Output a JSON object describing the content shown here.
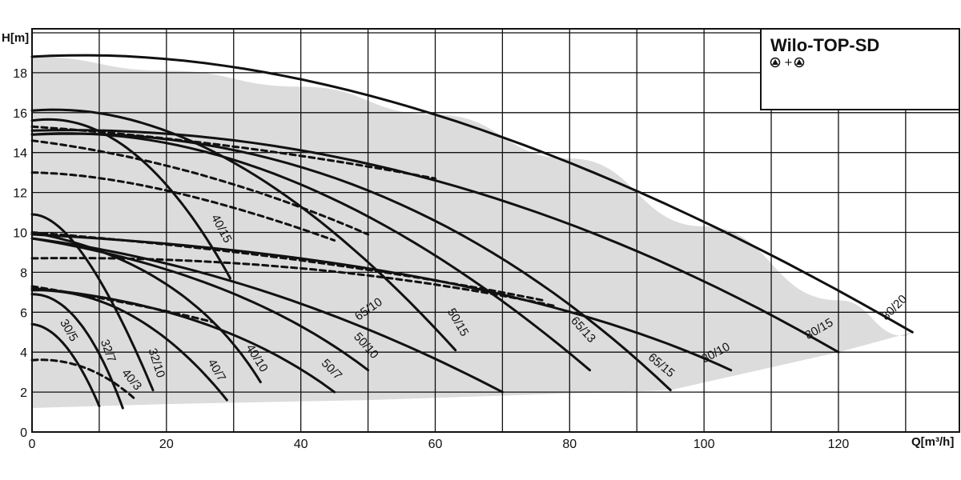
{
  "chart_data": {
    "type": "line",
    "title": "Wilo-TOP-SD",
    "subtitle_symbols": [
      "pump-icon",
      "+",
      "pump-icon"
    ],
    "subtitle_plus": "+",
    "xlabel": "Q[m³/h]",
    "ylabel": "H[m]",
    "xlim": [
      0,
      138
    ],
    "ylim": [
      0,
      20.2
    ],
    "x_ticks": [
      0,
      20,
      40,
      60,
      80,
      100,
      120
    ],
    "y_ticks": [
      0,
      2,
      4,
      6,
      8,
      10,
      12,
      14,
      16,
      18
    ],
    "grid": true,
    "colors": {
      "line": "#111111",
      "envelope": "#dcdcdc",
      "grid": "#111111"
    },
    "envelope": {
      "upper": [
        [
          0,
          18.8
        ],
        [
          20,
          18.1
        ],
        [
          40,
          17.3
        ],
        [
          60,
          15.9
        ],
        [
          80,
          13.7
        ],
        [
          100,
          10.3
        ],
        [
          120,
          6.6
        ],
        [
          130,
          4.8
        ]
      ],
      "lower": [
        [
          131,
          5.0
        ],
        [
          120,
          4.0
        ],
        [
          95,
          2.1
        ],
        [
          50,
          1.6
        ],
        [
          20,
          1.4
        ],
        [
          0,
          1.2
        ]
      ]
    },
    "series": [
      {
        "name": "30/5",
        "style": "solid",
        "points": [
          [
            0,
            5.4
          ],
          [
            5,
            4.3
          ],
          [
            10,
            1.3
          ]
        ]
      },
      {
        "name": "32/7",
        "style": "solid",
        "points": [
          [
            0,
            6.9
          ],
          [
            7,
            5.5
          ],
          [
            13.5,
            1.2
          ]
        ]
      },
      {
        "name": "40/3",
        "style": "dashed",
        "points": [
          [
            0,
            3.6
          ],
          [
            8,
            3.2
          ],
          [
            15.5,
            1.6
          ]
        ]
      },
      {
        "name": "32/10",
        "style": "solid",
        "points": [
          [
            0,
            10.9
          ],
          [
            8,
            8.7
          ],
          [
            18,
            2.1
          ]
        ]
      },
      {
        "name": "40/7",
        "style": "solid",
        "points": [
          [
            0,
            7.1
          ],
          [
            15,
            5.8
          ],
          [
            29,
            1.6
          ]
        ]
      },
      {
        "name": "40/10",
        "style": "solid",
        "points": [
          [
            0,
            10.0
          ],
          [
            20,
            7.4
          ],
          [
            34,
            2.5
          ]
        ]
      },
      {
        "name": "50/7",
        "style": "solid",
        "points": [
          [
            0,
            7.2
          ],
          [
            25,
            5.5
          ],
          [
            45,
            2.0
          ]
        ]
      },
      {
        "name": "50/10",
        "style": "solid",
        "points": [
          [
            0,
            9.7
          ],
          [
            28,
            7.2
          ],
          [
            50,
            3.1
          ]
        ]
      },
      {
        "name": "65/10",
        "style": "solid",
        "points": [
          [
            0,
            9.7
          ],
          [
            35,
            7.0
          ],
          [
            70,
            2.0
          ]
        ]
      },
      {
        "name": "40/15",
        "style": "solid",
        "points": [
          [
            0,
            15.6
          ],
          [
            15,
            14.0
          ],
          [
            29.5,
            7.7
          ]
        ]
      },
      {
        "name": "50/15",
        "style": "solid",
        "points": [
          [
            0,
            16.1
          ],
          [
            30,
            13.5
          ],
          [
            63,
            4.1
          ]
        ]
      },
      {
        "name": "65/13",
        "style": "solid",
        "points": [
          [
            0,
            14.9
          ],
          [
            40,
            12.4
          ],
          [
            83,
            3.1
          ]
        ]
      },
      {
        "name": "65/15",
        "style": "solid",
        "points": [
          [
            0,
            14.9
          ],
          [
            50,
            12.1
          ],
          [
            95,
            2.1
          ]
        ]
      },
      {
        "name": "80/10",
        "style": "solid",
        "points": [
          [
            0,
            9.9
          ],
          [
            60,
            7.6
          ],
          [
            104,
            3.1
          ]
        ]
      },
      {
        "name": "80/15",
        "style": "solid",
        "points": [
          [
            0,
            15.1
          ],
          [
            60,
            12.6
          ],
          [
            120,
            4.0
          ]
        ]
      },
      {
        "name": "80/20",
        "style": "solid",
        "points": [
          [
            0,
            18.8
          ],
          [
            60,
            15.9
          ],
          [
            131,
            5.0
          ]
        ]
      },
      {
        "name": "",
        "style": "dashed",
        "points": [
          [
            0,
            15.3
          ],
          [
            30,
            14.3
          ],
          [
            60,
            12.7
          ]
        ]
      },
      {
        "name": "",
        "style": "dashed",
        "points": [
          [
            0,
            14.6
          ],
          [
            25,
            12.9
          ],
          [
            50,
            9.9
          ]
        ]
      },
      {
        "name": "",
        "style": "dashed",
        "points": [
          [
            0,
            13.0
          ],
          [
            20,
            12.1
          ],
          [
            45,
            9.6
          ]
        ]
      },
      {
        "name": "",
        "style": "dashed",
        "points": [
          [
            0,
            10.0
          ],
          [
            40,
            8.6
          ],
          [
            76,
            6.6
          ]
        ]
      },
      {
        "name": "",
        "style": "dashed",
        "points": [
          [
            0,
            8.7
          ],
          [
            40,
            8.2
          ],
          [
            78,
            6.3
          ]
        ]
      },
      {
        "name": "",
        "style": "dashed",
        "points": [
          [
            0,
            7.3
          ],
          [
            15,
            6.4
          ],
          [
            27,
            5.5
          ]
        ]
      }
    ],
    "labels": [
      {
        "text": "30/5",
        "x": 5,
        "y": 5.0,
        "angle": 60
      },
      {
        "text": "32/7",
        "x": 10.8,
        "y": 4.0,
        "angle": 70
      },
      {
        "text": "40/3",
        "x": 14.4,
        "y": 2.5,
        "angle": 50
      },
      {
        "text": "32/10",
        "x": 18,
        "y": 3.4,
        "angle": 72
      },
      {
        "text": "40/7",
        "x": 27,
        "y": 3.0,
        "angle": 60
      },
      {
        "text": "40/10",
        "x": 33,
        "y": 3.6,
        "angle": 58
      },
      {
        "text": "50/7",
        "x": 44.2,
        "y": 3.0,
        "angle": 45
      },
      {
        "text": "50/10",
        "x": 49.3,
        "y": 4.2,
        "angle": 48
      },
      {
        "text": "65/10",
        "x": 50.4,
        "y": 6.0,
        "angle": -35
      },
      {
        "text": "40/15",
        "x": 27.7,
        "y": 10.1,
        "angle": 62
      },
      {
        "text": "50/15",
        "x": 62.9,
        "y": 5.4,
        "angle": 60
      },
      {
        "text": "65/13",
        "x": 81.6,
        "y": 5.0,
        "angle": 48
      },
      {
        "text": "65/15",
        "x": 93.3,
        "y": 3.2,
        "angle": 40
      },
      {
        "text": "80/10",
        "x": 102,
        "y": 3.8,
        "angle": -28
      },
      {
        "text": "80/15",
        "x": 117.4,
        "y": 5.0,
        "angle": -30
      },
      {
        "text": "80/20",
        "x": 128.7,
        "y": 6.1,
        "angle": -45
      }
    ]
  }
}
